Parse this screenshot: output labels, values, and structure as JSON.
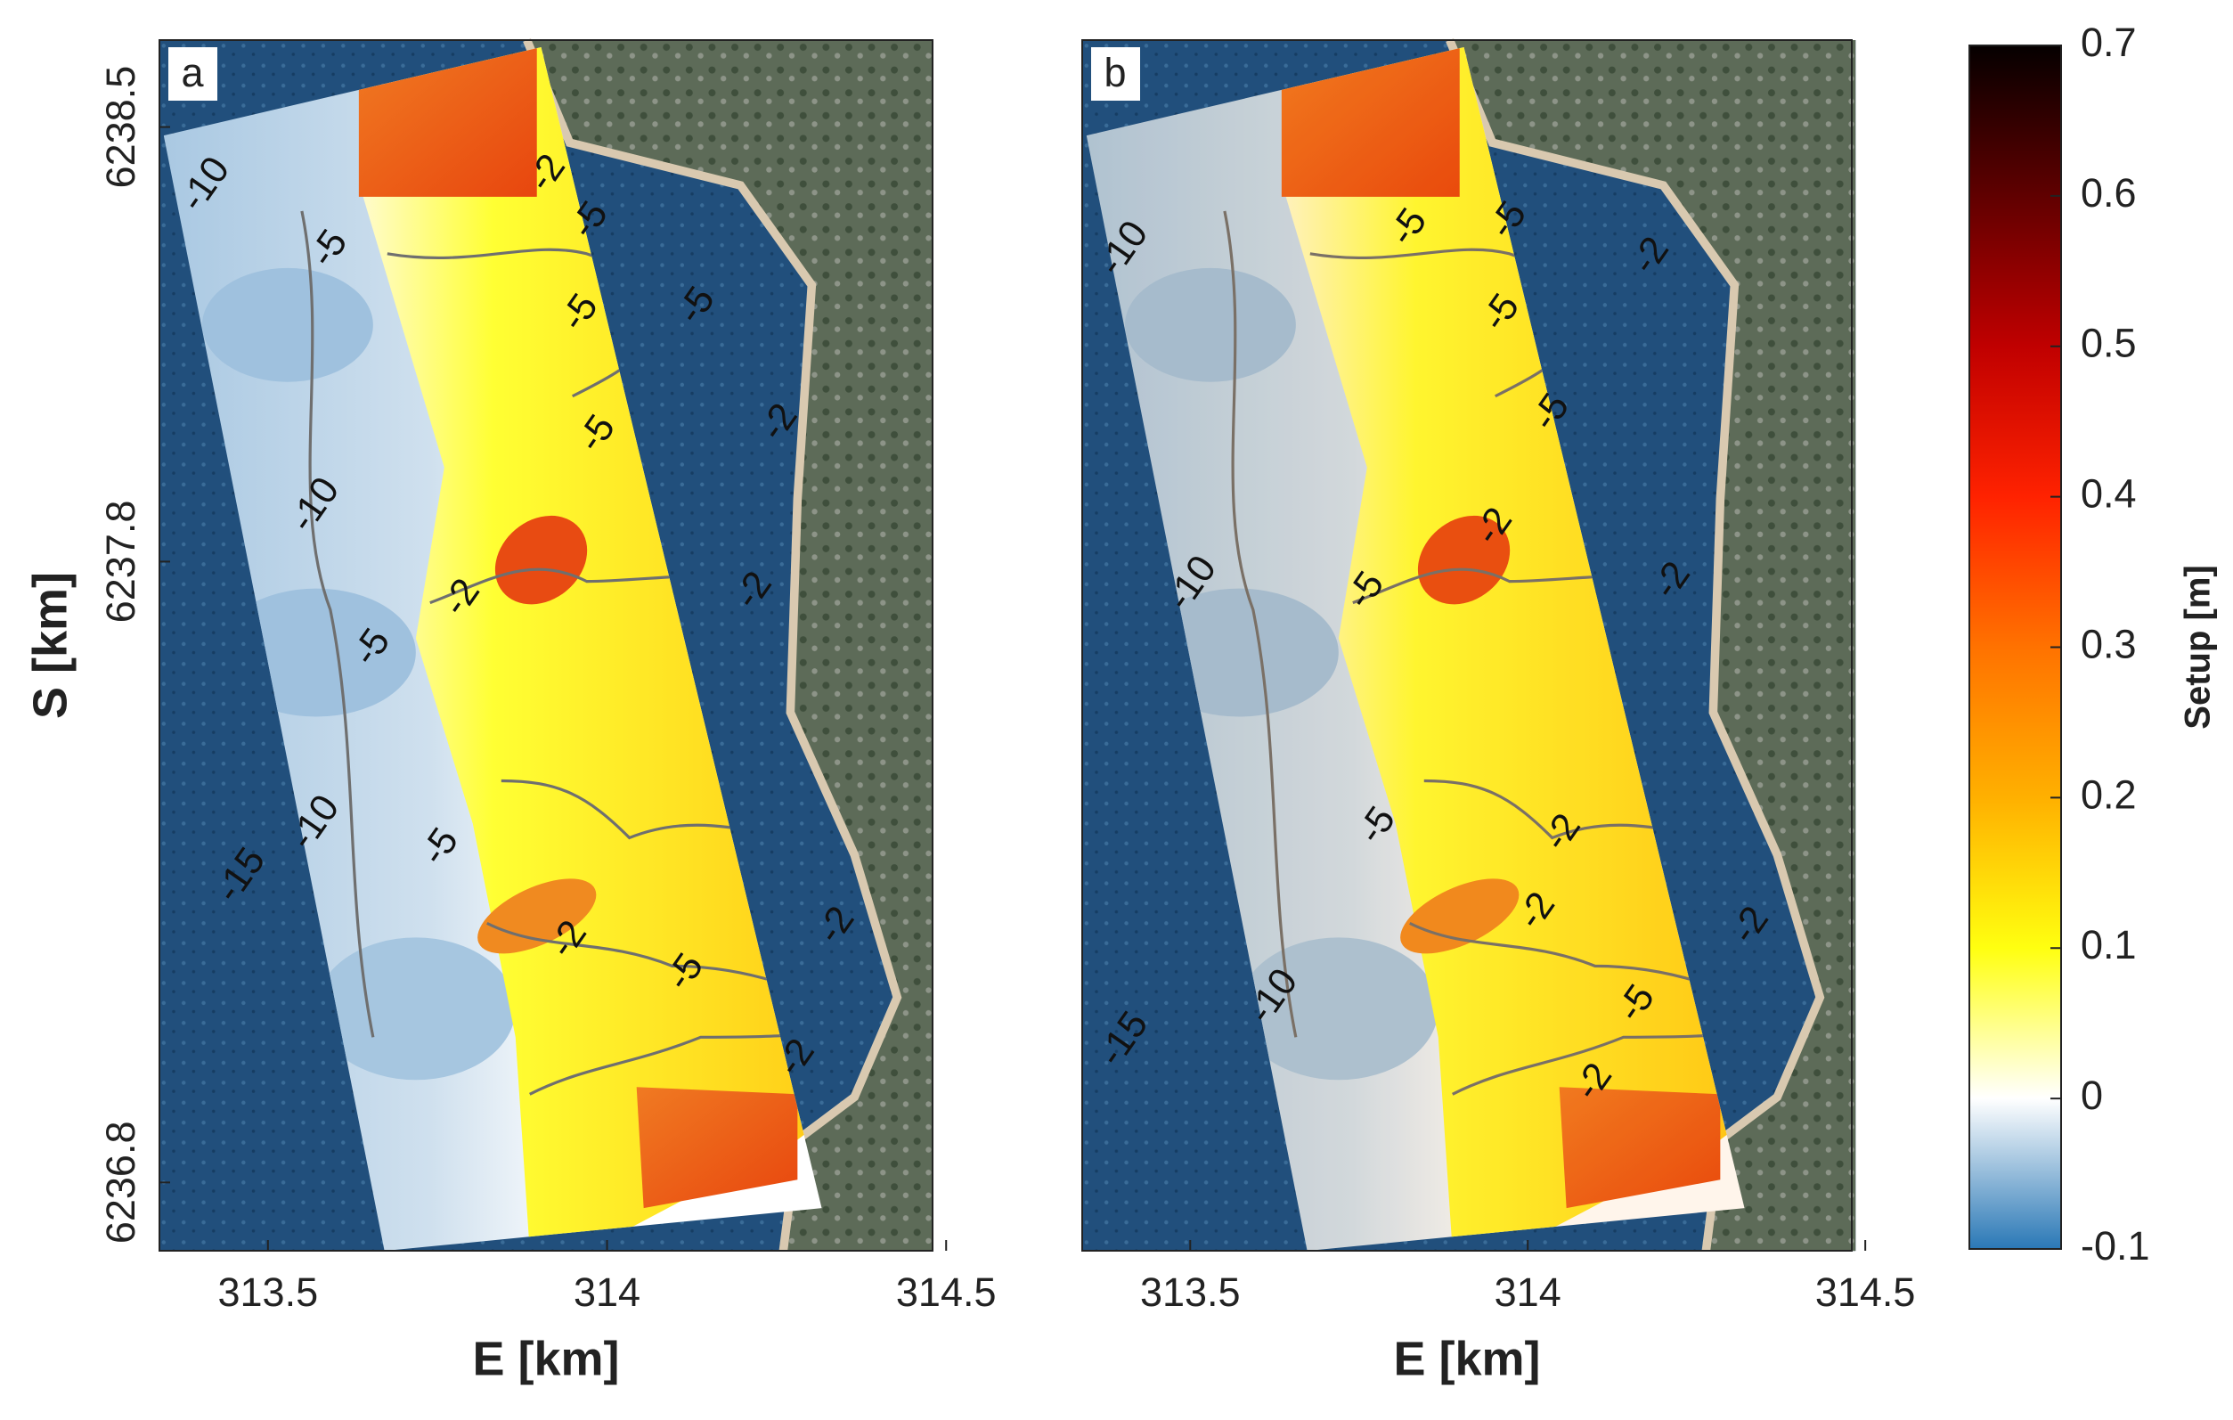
{
  "chart_data": [
    {
      "type": "map",
      "panel_label": "a",
      "xlabel": "E [km]",
      "ylabel": "S [km]",
      "xlim": [
        313.34,
        314.48
      ],
      "xticks": [
        313.5,
        314,
        314.5
      ],
      "ylim": [
        6236.69,
        6238.64
      ],
      "yticks": [
        6236.8,
        6237.8,
        6238.5
      ],
      "contour_labels": [
        -10,
        -5,
        -2,
        -5,
        -5,
        -5,
        -2,
        -5,
        -10,
        -2,
        -2,
        -5,
        -10,
        -5,
        -15,
        -2,
        -5,
        -2,
        -2
      ]
    },
    {
      "type": "map",
      "panel_label": "b",
      "xlabel": "E [km]",
      "xlim": [
        313.34,
        314.48
      ],
      "xticks": [
        313.5,
        314,
        314.5
      ],
      "ylim": [
        6236.69,
        6238.64
      ],
      "contour_labels": [
        -10,
        -5,
        -5,
        -2,
        -5,
        -5,
        -2,
        -5,
        -10,
        -2,
        -5,
        -2,
        -2,
        -2,
        -10,
        -15,
        -5,
        -2
      ]
    },
    {
      "type": "colorbar",
      "label": "Setup [m]",
      "ylim": [
        -0.1,
        0.7
      ],
      "yticks": [
        -0.1,
        0,
        0.1,
        0.2,
        0.3,
        0.4,
        0.5,
        0.6,
        0.7
      ]
    }
  ]
}
